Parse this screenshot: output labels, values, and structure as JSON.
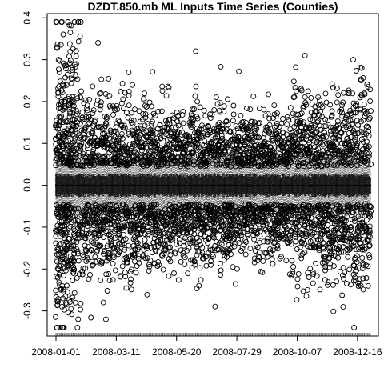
{
  "chart_data": {
    "type": "scatter",
    "title": "DZDT.850.mb ML Inputs Time Series (Counties)",
    "xlabel": "",
    "ylabel": "",
    "x_range": [
      "2008-01-01",
      "2008-12-31"
    ],
    "ylim": [
      -0.36,
      0.41
    ],
    "x_tick_labels": [
      "2008-01-01",
      "2008-03-11",
      "2008-05-20",
      "2008-07-29",
      "2008-10-07",
      "2008-12-16"
    ],
    "y_tick_labels": [
      "-0.3",
      "-0.2",
      "-0.1",
      "0.0",
      "0.1",
      "0.2",
      "0.3",
      "0.4"
    ],
    "y_ticks": [
      -0.3,
      -0.2,
      -0.1,
      0.0,
      0.1,
      0.2,
      0.3,
      0.4
    ],
    "grid": false,
    "legend": "none",
    "marker": "open-circle",
    "series": [
      {
        "points_notable": [
          {
            "x": "2008-01-01",
            "y": 0.39
          },
          {
            "x": "2008-01-02",
            "y": 0.33
          },
          {
            "x": "2008-01-04",
            "y": 0.3
          },
          {
            "x": "2008-01-05",
            "y": 0.27
          },
          {
            "x": "2008-01-08",
            "y": -0.29
          },
          {
            "x": "2008-01-09",
            "y": -0.27
          },
          {
            "x": "2008-01-20",
            "y": 0.28
          },
          {
            "x": "2008-01-24",
            "y": 0.26
          },
          {
            "x": "2008-02-22",
            "y": 0.22
          },
          {
            "x": "2008-02-22",
            "y": 0.19
          },
          {
            "x": "2008-02-25",
            "y": -0.28
          },
          {
            "x": "2008-02-28",
            "y": -0.32
          },
          {
            "x": "2008-04-14",
            "y": 0.17
          },
          {
            "x": "2008-05-17",
            "y": -0.21
          },
          {
            "x": "2008-06-13",
            "y": 0.2
          },
          {
            "x": "2008-06-15",
            "y": -0.24
          },
          {
            "x": "2008-06-28",
            "y": 0.17
          },
          {
            "x": "2008-10-03",
            "y": 0.21
          },
          {
            "x": "2008-10-16",
            "y": 0.31
          },
          {
            "x": "2008-10-19",
            "y": -0.25
          },
          {
            "x": "2008-12-11",
            "y": 0.3
          },
          {
            "x": "2008-12-21",
            "y": 0.28
          },
          {
            "x": "2008-12-24",
            "y": 0.22
          },
          {
            "x": "2008-12-13",
            "y": -0.22
          }
        ]
      }
    ],
    "colors": {
      "points": "#000000",
      "box": "#555555",
      "axis": "#000000"
    }
  }
}
